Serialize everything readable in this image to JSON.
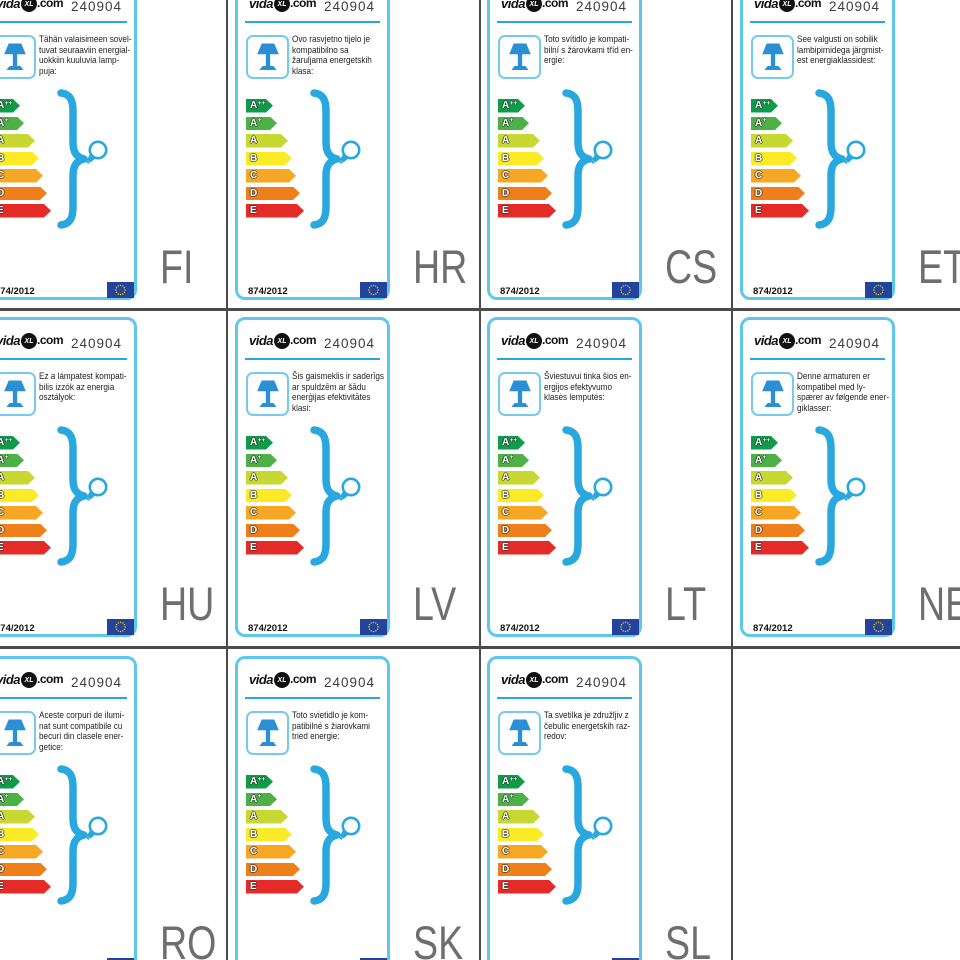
{
  "branding": {
    "logo_vida": "vida",
    "logo_xl": "XL",
    "logo_com": ".com"
  },
  "header": {
    "article_number": "240904"
  },
  "footer": {
    "regulation": "874/2012"
  },
  "energy_scale": {
    "classes": [
      {
        "label": "A",
        "sup": "++",
        "color": "#0f9c49",
        "width": 27
      },
      {
        "label": "A",
        "sup": "+",
        "color": "#4db148",
        "width": 31
      },
      {
        "label": "A",
        "sup": "",
        "color": "#c6d831",
        "width": 42
      },
      {
        "label": "B",
        "sup": "",
        "color": "#fbea26",
        "width": 46
      },
      {
        "label": "C",
        "sup": "",
        "color": "#f6a723",
        "width": 50
      },
      {
        "label": "D",
        "sup": "",
        "color": "#ee7f1b",
        "width": 54
      },
      {
        "label": "E",
        "sup": "",
        "color": "#e52b28",
        "width": 58
      }
    ]
  },
  "cards": [
    {
      "lang_code": "FI",
      "description": "Tähän valaisimeen sovel-\ntuvat seuraaviin energial-\nuokkiin kuuluvia lamp-\npuja:"
    },
    {
      "lang_code": "HR",
      "description": "Ovo rasvjetno tijelo je\nkompatibilno sa\nžaruljama energetskih\nklasa:"
    },
    {
      "lang_code": "CS",
      "description": "Toto svítidlo je kompati-\nbilní s žárovkami tříd en-\nergie:"
    },
    {
      "lang_code": "ET",
      "description": "See valgusti on sobilik\nlambipirnidega järgmist-\nest energiaklassidest:"
    },
    {
      "lang_code": "HU",
      "description": "Ez a lámpatest kompati-\nbilis izzók az energia\nosztályok:"
    },
    {
      "lang_code": "LV",
      "description": "Šis gaismeklis ir saderīgs\nar spuldzēm ar šādu\nenerģijas efektivitātes\nklasi:"
    },
    {
      "lang_code": "LT",
      "description": "Šviestuvui tinka šios en-\nergijos efektyvumo\nklasės lemputės:"
    },
    {
      "lang_code": "NE",
      "description": "Denne armaturen er\nkompatibel med ly-\nspærer av følgende ener-\ngiklasser:"
    },
    {
      "lang_code": "RO",
      "description": "Aceste corpuri de ilumi-\nnat sunt compatibile cu\nbecuri din clasele ener-\ngetice:"
    },
    {
      "lang_code": "SK",
      "description": "Toto svietidlo je kom-\npatibilné s žiarovkami\ntried energie:"
    },
    {
      "lang_code": "SL",
      "description": "Ta svetilka je združljiv z\nčebulic energetskih raz-\nredov:"
    }
  ],
  "colors": {
    "card_border": "#5ec8ec",
    "accent_blue": "#29a8df",
    "lamp_blue": "#2a8fd4",
    "grid_line": "#4b4b4b",
    "lang_code_gray": "#6e6e6e",
    "eu_flag_blue": "#24439c",
    "star_yellow": "#ffd617"
  }
}
